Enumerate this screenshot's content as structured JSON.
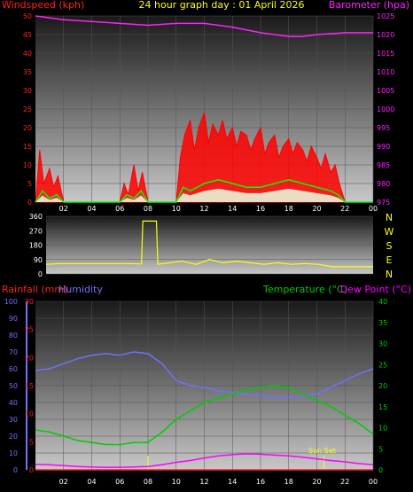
{
  "title": "24 hour graph day : 01 April 2026",
  "chart_data": [
    {
      "name": "wind-barometer",
      "type": "line",
      "left_label": "Windspeed (kph)",
      "right_label": "Barometer (hpa)",
      "y_left_ticks": [
        0,
        5,
        10,
        15,
        20,
        25,
        30,
        35,
        40,
        45,
        50
      ],
      "y_right_ticks": [
        975,
        980,
        985,
        990,
        995,
        1000,
        1005,
        1010,
        1015,
        1020,
        1025
      ],
      "x_ticks": [
        "02",
        "04",
        "06",
        "08",
        "10",
        "12",
        "14",
        "16",
        "18",
        "20",
        "22",
        "00"
      ],
      "colors": {
        "left_label": "#ff2020",
        "right_label": "#ff20ff",
        "gust": "#ff0000",
        "average": "#00ff00",
        "baseline": "#ffffff",
        "barometer": "#ff20ff"
      },
      "barometer": {
        "x": [
          0,
          2,
          4,
          6,
          8,
          10,
          12,
          14,
          16,
          18,
          19,
          20,
          22,
          24
        ],
        "y": [
          1025,
          1024,
          1023.5,
          1023,
          1022.5,
          1023,
          1023,
          1022,
          1020.5,
          1019.5,
          1019.5,
          1020,
          1020.5,
          1020.5
        ]
      },
      "wind_average": {
        "x": [
          0,
          0.5,
          1,
          1.5,
          2,
          4,
          6,
          6.5,
          7,
          7.5,
          8,
          9,
          10,
          10.5,
          11,
          12,
          13,
          14,
          15,
          16,
          17,
          18,
          19,
          20,
          21,
          21.5,
          22,
          24
        ],
        "y": [
          0,
          3,
          1,
          2,
          0,
          0,
          0,
          2,
          1,
          3,
          0,
          0,
          0,
          4,
          3,
          5,
          6,
          5,
          4,
          4,
          5,
          6,
          5,
          4,
          3,
          2,
          0,
          0
        ]
      },
      "wind_gust": {
        "x": [
          0,
          0.3,
          0.6,
          1,
          1.3,
          1.6,
          2,
          3,
          6,
          6.3,
          6.6,
          7,
          7.3,
          7.6,
          8,
          9,
          10,
          10.3,
          10.6,
          11,
          11.3,
          11.6,
          12,
          12.3,
          12.6,
          13,
          13.3,
          13.6,
          14,
          14.3,
          14.6,
          15,
          15.3,
          15.6,
          16,
          16.3,
          16.6,
          17,
          17.3,
          17.6,
          18,
          18.3,
          18.6,
          19,
          19.3,
          19.6,
          20,
          20.3,
          20.6,
          21,
          21.3,
          21.6,
          22,
          24
        ],
        "y": [
          0,
          14,
          5,
          9,
          4,
          7,
          0,
          0,
          0,
          5,
          2,
          10,
          3,
          8,
          0,
          0,
          0,
          12,
          18,
          22,
          14,
          20,
          24,
          16,
          21,
          18,
          22,
          17,
          20,
          15,
          19,
          18,
          14,
          17,
          20,
          13,
          16,
          18,
          12,
          15,
          17,
          13,
          16,
          14,
          11,
          15,
          12,
          9,
          13,
          8,
          10,
          5,
          0,
          0
        ]
      }
    },
    {
      "name": "wind-direction",
      "type": "line",
      "y_ticks": [
        0,
        90,
        180,
        270,
        360
      ],
      "compass_labels": [
        "N",
        "W",
        "S",
        "E",
        "N"
      ],
      "colors": {
        "direction": "#ffff00"
      },
      "direction": {
        "x": [
          0,
          1,
          2,
          4,
          6,
          7,
          7.1,
          8.1,
          8.2,
          9,
          10,
          11,
          12,
          13,
          14,
          15,
          16,
          17,
          18,
          19,
          20,
          21,
          22,
          23,
          24
        ],
        "y": [
          60,
          65,
          65,
          65,
          65,
          62,
          330,
          330,
          60,
          70,
          80,
          60,
          90,
          70,
          80,
          70,
          60,
          70,
          60,
          65,
          60,
          45,
          45,
          45,
          45
        ]
      }
    },
    {
      "name": "rain-humidity-temperature",
      "type": "line",
      "labels": {
        "rainfall": "Rainfall (mm)",
        "humidity": "Humidity",
        "temperature": "Temperature (°C)",
        "dew_point": "Dew Point (°C)"
      },
      "annotation": "Sun Set",
      "y_humidity_ticks": [
        0,
        10,
        20,
        30,
        40,
        50,
        60,
        70,
        80,
        90,
        100
      ],
      "y_rain_ticks": [
        0,
        5,
        10,
        15,
        20,
        25,
        30
      ],
      "y_temp_ticks": [
        0,
        5,
        10,
        15,
        20,
        25,
        30,
        35,
        40
      ],
      "x_ticks": [
        "02",
        "04",
        "06",
        "08",
        "10",
        "12",
        "14",
        "16",
        "18",
        "20",
        "22",
        "00"
      ],
      "colors": {
        "rainfall": "#ff2020",
        "humidity": "#7070ff",
        "temperature": "#00cc00",
        "dew_point": "#ff00ff",
        "sun_marker": "#ffff00"
      },
      "humidity": {
        "x": [
          0,
          1,
          2,
          3,
          4,
          5,
          6,
          7,
          8,
          9,
          10,
          11,
          12,
          13,
          14,
          15,
          16,
          17,
          18,
          19,
          20,
          21,
          22,
          23,
          24
        ],
        "y": [
          59,
          60,
          63,
          66,
          68,
          69,
          68,
          70,
          69,
          63,
          53,
          50,
          49,
          47,
          46,
          45,
          44,
          43,
          43,
          44,
          45,
          49,
          53,
          57,
          60
        ]
      },
      "temperature": {
        "x": [
          0,
          1,
          2,
          3,
          4,
          5,
          6,
          7,
          8,
          9,
          10,
          11,
          12,
          13,
          14,
          15,
          16,
          17,
          18,
          19,
          20,
          21,
          22,
          23,
          24
        ],
        "y": [
          9.5,
          9,
          8,
          7,
          6.5,
          6,
          6,
          6.5,
          6.5,
          9,
          12,
          14,
          16,
          17,
          18,
          19,
          19.5,
          20,
          19.5,
          18,
          16.5,
          15,
          13,
          11,
          8.5
        ]
      },
      "dew_point": {
        "x": [
          0,
          1,
          2,
          3,
          4,
          5,
          6,
          7,
          8,
          9,
          10,
          11,
          12,
          13,
          14,
          15,
          16,
          17,
          18,
          19,
          20,
          21,
          22,
          23,
          24
        ],
        "y": [
          1.3,
          1.2,
          1.0,
          0.8,
          0.7,
          0.6,
          0.6,
          0.7,
          0.8,
          1.2,
          1.8,
          2.2,
          2.8,
          3.3,
          3.6,
          3.8,
          3.7,
          3.5,
          3.3,
          3.0,
          2.6,
          2.2,
          1.9,
          1.5,
          1.2
        ]
      },
      "rainfall": {
        "x": [
          0,
          24
        ],
        "y": [
          0,
          0
        ]
      },
      "markers": [
        8,
        20.5
      ]
    }
  ]
}
